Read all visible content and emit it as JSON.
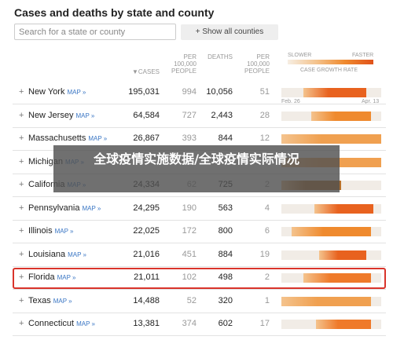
{
  "header": {
    "title": "Cases and deaths by state and county",
    "search_placeholder": "Search for a state or county",
    "button": "+ Show all counties"
  },
  "legend": {
    "slower": "SLOWER",
    "faster": "FASTER",
    "label": "CASE GROWTH RATE",
    "start_date": "Feb. 26",
    "end_date": "Apr. 13"
  },
  "table": {
    "columns": [
      "▼CASES",
      "PER 100,000 PEOPLE",
      "DEATHS",
      "PER 100,000 PEOPLE"
    ],
    "map_link": "MAP »",
    "rows": [
      [
        "New York",
        "195,031",
        "994",
        "10,056",
        "51"
      ],
      [
        "New Jersey",
        "64,584",
        "727",
        "2,443",
        "28"
      ],
      [
        "Massachusetts",
        "26,867",
        "393",
        "844",
        "12"
      ],
      [
        "Michigan"
      ],
      [
        "California",
        "24,334",
        "62",
        "725",
        "2"
      ],
      [
        "Pennsylvania",
        "24,295",
        "190",
        "563",
        "4"
      ],
      [
        "Illinois",
        "22,025",
        "172",
        "800",
        "6"
      ],
      [
        "Louisiana",
        "21,016",
        "451",
        "884",
        "19"
      ],
      [
        "Florida",
        "21,011",
        "102",
        "498",
        "2"
      ],
      [
        "Texas",
        "14,488",
        "52",
        "320",
        "1"
      ],
      [
        "Connecticut",
        "13,381",
        "374",
        "602",
        "17"
      ]
    ]
  },
  "overlay": {
    "text": "全球疫情实施数据/全球疫情实际情况"
  }
}
